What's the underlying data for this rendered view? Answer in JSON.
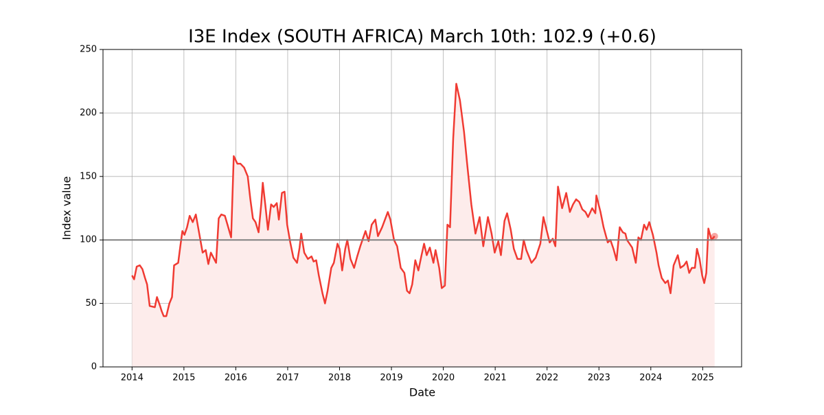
{
  "chart_data": {
    "type": "line",
    "title": "I3E Index (SOUTH AFRICA) March 10th: 102.9 (+0.6)",
    "x_label": "Date",
    "y_label": "Index value",
    "x": [
      2014.0,
      2014.04,
      2014.09,
      2014.15,
      2014.2,
      2014.25,
      2014.29,
      2014.34,
      2014.44,
      2014.48,
      2014.54,
      2014.57,
      2014.61,
      2014.66,
      2014.72,
      2014.77,
      2014.81,
      2014.89,
      2014.93,
      2014.97,
      2015.01,
      2015.06,
      2015.11,
      2015.17,
      2015.23,
      2015.3,
      2015.36,
      2015.42,
      2015.47,
      2015.52,
      2015.62,
      2015.67,
      2015.72,
      2015.79,
      2015.84,
      2015.91,
      2015.96,
      2016.03,
      2016.09,
      2016.16,
      2016.23,
      2016.28,
      2016.33,
      2016.38,
      2016.44,
      2016.49,
      2016.52,
      2016.57,
      2016.62,
      2016.68,
      2016.73,
      2016.79,
      2016.83,
      2016.89,
      2016.94,
      2016.99,
      2017.05,
      2017.11,
      2017.18,
      2017.23,
      2017.26,
      2017.32,
      2017.39,
      2017.46,
      2017.5,
      2017.55,
      2017.6,
      2017.67,
      2017.72,
      2017.77,
      2017.84,
      2017.89,
      2017.96,
      2018.0,
      2018.05,
      2018.11,
      2018.15,
      2018.21,
      2018.28,
      2018.34,
      2018.4,
      2018.5,
      2018.56,
      2018.62,
      2018.69,
      2018.74,
      2018.82,
      2018.93,
      2018.98,
      2019.05,
      2019.11,
      2019.18,
      2019.25,
      2019.3,
      2019.35,
      2019.4,
      2019.46,
      2019.52,
      2019.58,
      2019.63,
      2019.68,
      2019.74,
      2019.81,
      2019.85,
      2019.92,
      2019.97,
      2020.03,
      2020.08,
      2020.13,
      2020.19,
      2020.25,
      2020.32,
      2020.4,
      2020.46,
      2020.54,
      2020.62,
      2020.7,
      2020.77,
      2020.86,
      2020.93,
      2020.99,
      2021.06,
      2021.11,
      2021.18,
      2021.23,
      2021.3,
      2021.36,
      2021.43,
      2021.5,
      2021.55,
      2021.6,
      2021.7,
      2021.78,
      2021.87,
      2021.93,
      2021.99,
      2022.05,
      2022.11,
      2022.16,
      2022.21,
      2022.29,
      2022.37,
      2022.44,
      2022.5,
      2022.56,
      2022.62,
      2022.68,
      2022.74,
      2022.79,
      2022.87,
      2022.93,
      2022.95,
      2023.03,
      2023.09,
      2023.17,
      2023.22,
      2023.28,
      2023.34,
      2023.4,
      2023.46,
      2023.51,
      2023.54,
      2023.59,
      2023.64,
      2023.71,
      2023.76,
      2023.81,
      2023.87,
      2023.92,
      2023.97,
      2024.04,
      2024.11,
      2024.15,
      2024.21,
      2024.28,
      2024.33,
      2024.38,
      2024.44,
      2024.52,
      2024.57,
      2024.64,
      2024.69,
      2024.74,
      2024.79,
      2024.85,
      2024.89,
      2024.94,
      2024.99,
      2025.03,
      2025.07,
      2025.11,
      2025.17,
      2025.23
    ],
    "series": [
      {
        "color": "#f03a32",
        "fill": "#fdeceb",
        "values": [
          72,
          69,
          79,
          80,
          77,
          70,
          65,
          48,
          47,
          55,
          48,
          44,
          40,
          40,
          50,
          55,
          80,
          82,
          95,
          107,
          104,
          110,
          119,
          114,
          120,
          104,
          90,
          92,
          81,
          90,
          82,
          117,
          120,
          119,
          112,
          102,
          166,
          160,
          160,
          157,
          150,
          132,
          117,
          114,
          106,
          128,
          145,
          127,
          108,
          128,
          126,
          129,
          116,
          137,
          138,
          112,
          98,
          86,
          82,
          94,
          105,
          90,
          85,
          87,
          83,
          84,
          72,
          58,
          50,
          60,
          78,
          82,
          97,
          93,
          76,
          93,
          100,
          85,
          78,
          87,
          95,
          107,
          99,
          112,
          116,
          103,
          110,
          122,
          116,
          100,
          95,
          78,
          74,
          60,
          58,
          65,
          84,
          76,
          88,
          97,
          88,
          94,
          82,
          92,
          78,
          62,
          64,
          112,
          110,
          180,
          223,
          210,
          185,
          160,
          128,
          105,
          118,
          95,
          118,
          105,
          90,
          99,
          88,
          115,
          121,
          108,
          93,
          85,
          85,
          100,
          92,
          82,
          86,
          97,
          118,
          108,
          98,
          101,
          95,
          142,
          125,
          137,
          122,
          128,
          132,
          130,
          124,
          122,
          118,
          125,
          121,
          135,
          122,
          110,
          98,
          100,
          93,
          84,
          110,
          106,
          105,
          100,
          97,
          94,
          82,
          102,
          100,
          112,
          108,
          114,
          104,
          90,
          80,
          70,
          66,
          68,
          58,
          80,
          88,
          78,
          80,
          83,
          74,
          78,
          78,
          93,
          85,
          72,
          66,
          74,
          109,
          100,
          102.9
        ]
      }
    ],
    "reference_line": 100,
    "xlim": [
      2013.44,
      2025.75
    ],
    "xticks": [
      2014,
      2015,
      2016,
      2017,
      2018,
      2019,
      2020,
      2021,
      2022,
      2023,
      2024,
      2025
    ],
    "ylim": [
      0,
      250
    ],
    "yticks": [
      0,
      50,
      100,
      150,
      200,
      250
    ],
    "grid": true
  }
}
